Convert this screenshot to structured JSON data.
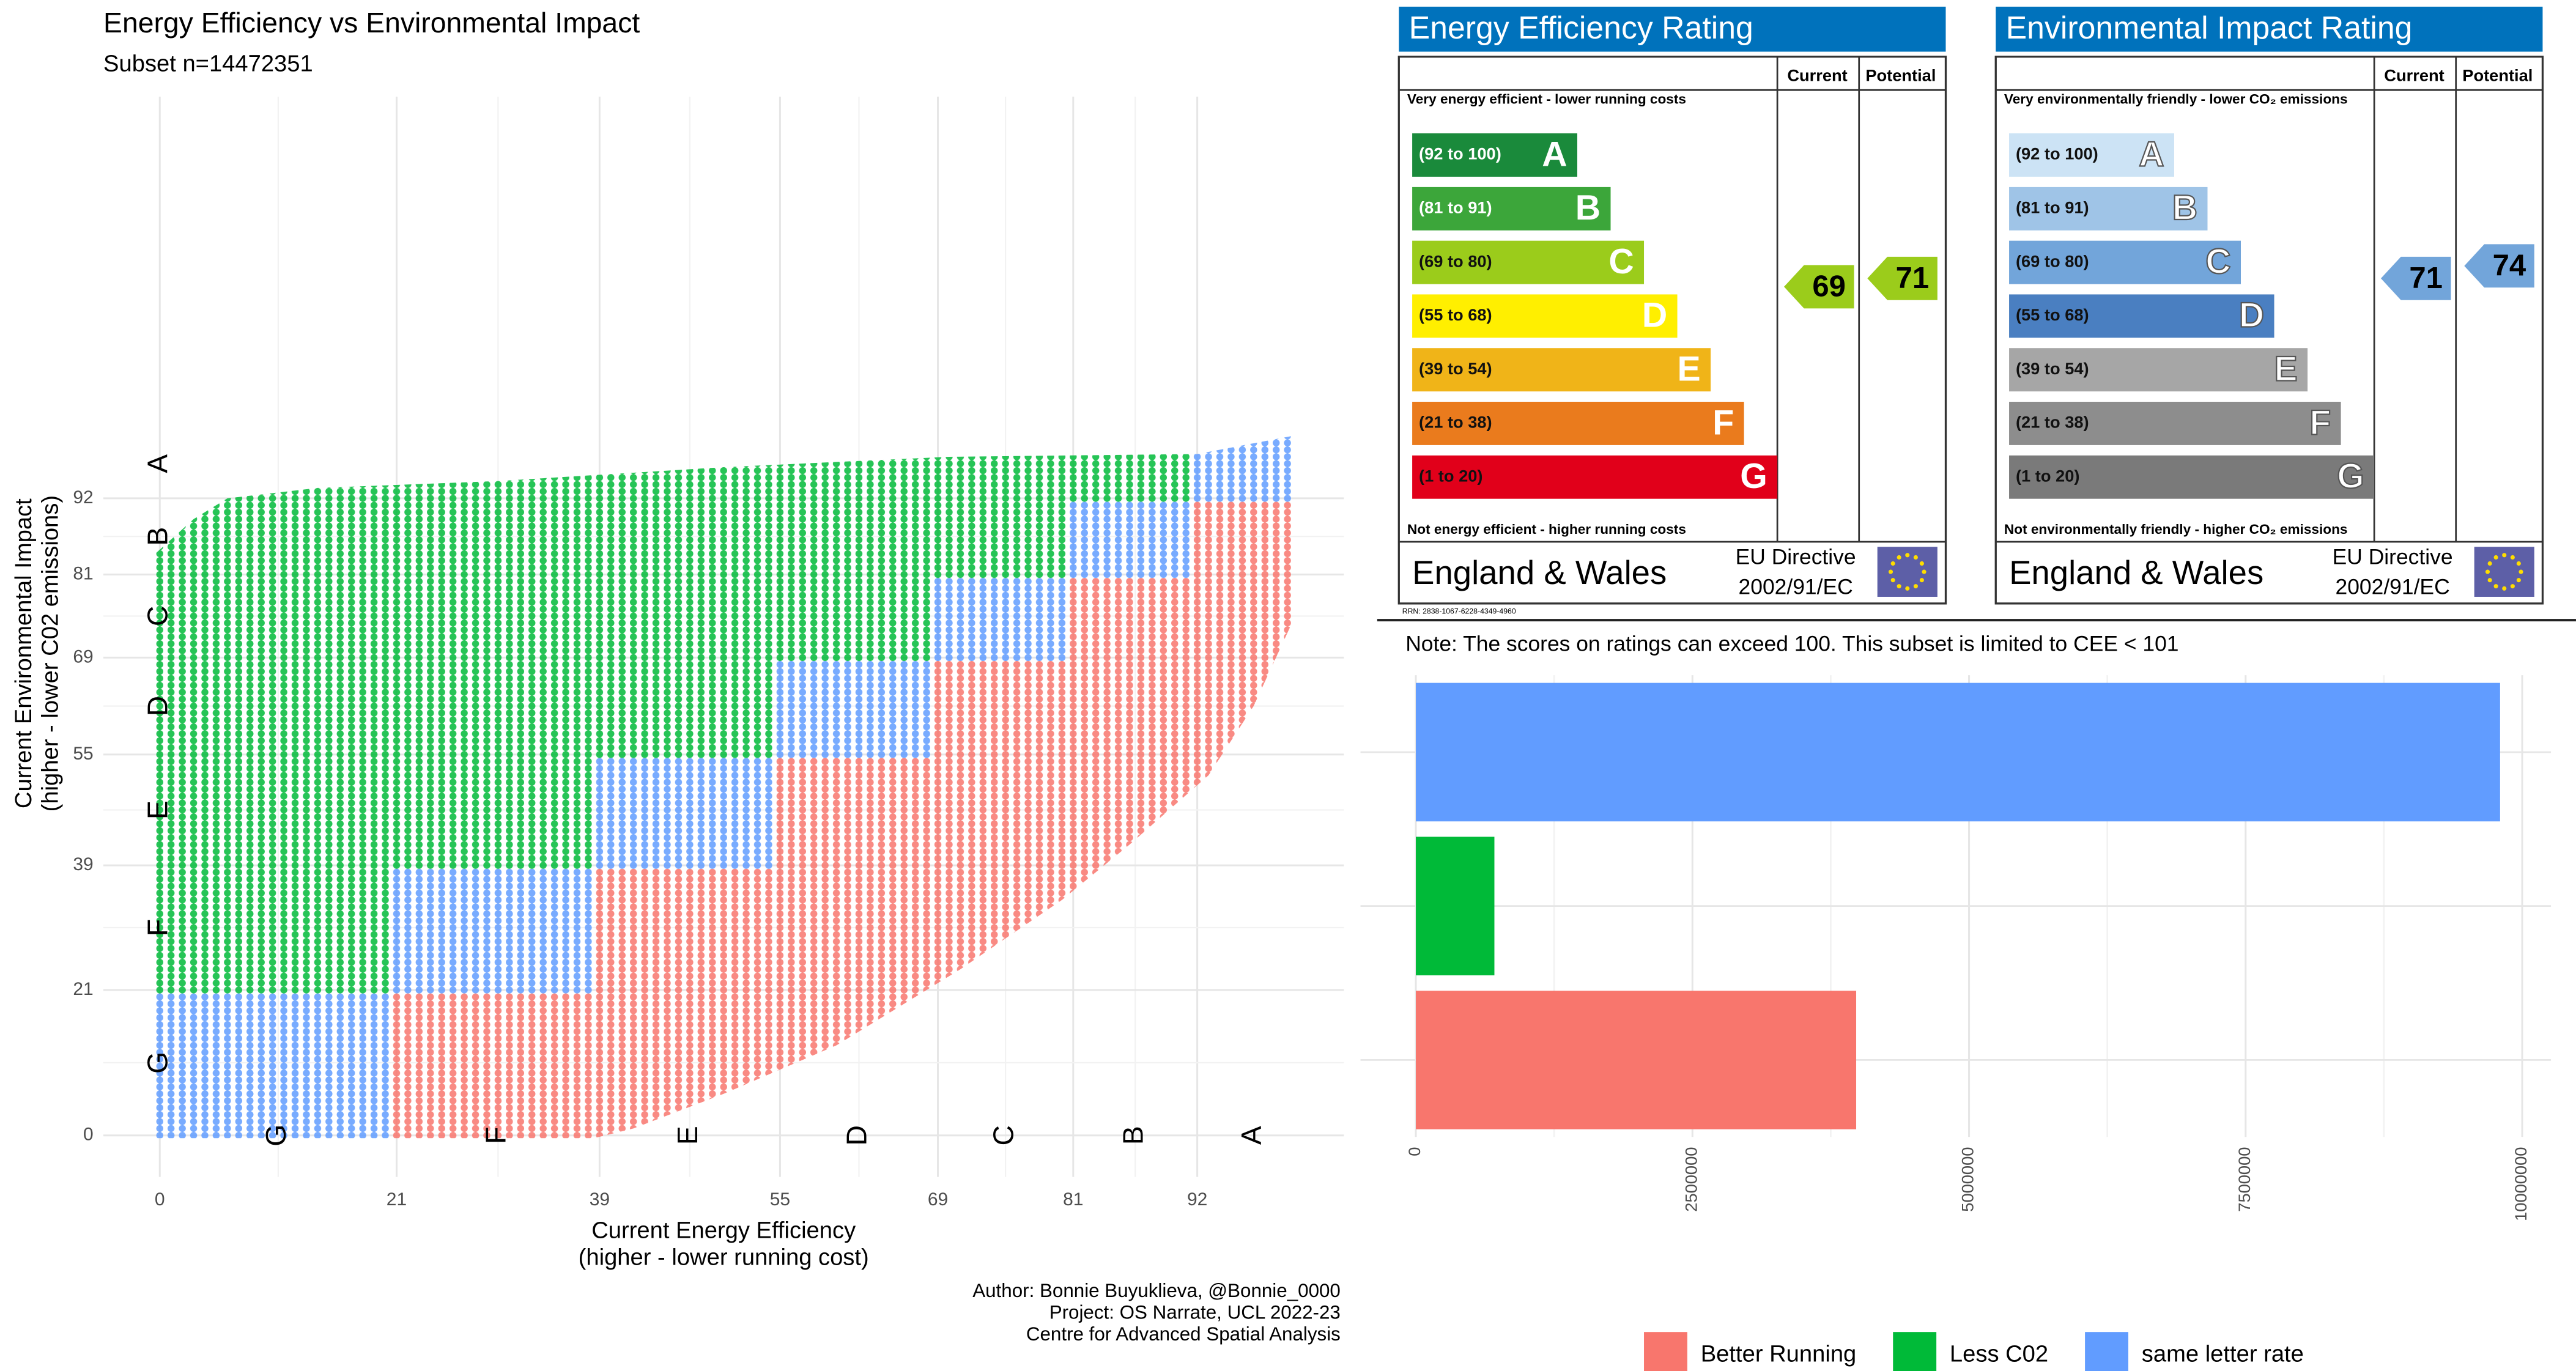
{
  "chart_data": [
    {
      "type": "scatter",
      "title": "Energy Efficiency vs Environmental Impact",
      "subtitle": "Subset n=14472351",
      "xlabel": [
        "Current Energy Efficiency",
        "(higher - lower running cost)"
      ],
      "ylabel": [
        "Current Environmental Impact",
        "(higher - lower C02 emissions)"
      ],
      "xlim": [
        -5,
        105
      ],
      "ylim": [
        -6,
        150
      ],
      "xticks": [
        0,
        21,
        39,
        55,
        69,
        81,
        92
      ],
      "yticks": [
        0,
        21,
        39,
        55,
        69,
        81,
        92
      ],
      "band_letters": [
        "G",
        "F",
        "E",
        "D",
        "C",
        "B",
        "A"
      ],
      "grid": true
    },
    {
      "type": "bar",
      "orientation": "horizontal",
      "note": "Note: The scores on ratings can exceed 100. This subset is limited to CEE < 101",
      "categories": [
        "Better Running",
        "Less C02",
        "same letter rate"
      ],
      "colors": [
        "#F8766D",
        "#00BA38",
        "#619CFF"
      ],
      "values": [
        3980000,
        710000,
        9800000
      ],
      "xlim": [
        -500000,
        10260000
      ],
      "xticks": [
        0,
        2500000,
        5000000,
        7500000,
        10000000
      ],
      "grid": true,
      "legend": "bottom"
    }
  ],
  "epc_panels": [
    {
      "title": "Energy Efficiency Rating",
      "header": [
        "Current",
        "Potential"
      ],
      "top_note": "Very energy efficient - lower running costs",
      "bands": [
        {
          "label": "(92 to 100)",
          "letter": "A",
          "color": "#1a8a3b"
        },
        {
          "label": "(81 to 91)",
          "letter": "B",
          "color": "#3ca63a"
        },
        {
          "label": "(69 to 80)",
          "letter": "C",
          "color": "#9bcc1b"
        },
        {
          "label": "(55 to 68)",
          "letter": "D",
          "color": "#ffef00"
        },
        {
          "label": "(39 to 54)",
          "letter": "E",
          "color": "#f0b418"
        },
        {
          "label": "(21 to 38)",
          "letter": "F",
          "color": "#ea7b1d"
        },
        {
          "label": "(1 to 20)",
          "letter": "G",
          "color": "#e1001a"
        }
      ],
      "bottom_note": "Not energy efficient - higher running costs",
      "country": "England & Wales",
      "directive": [
        "EU Directive",
        "2002/91/EC"
      ],
      "current": 69,
      "potential": 71,
      "rrn": "RRN: 2838-1067-6228-4349-4960"
    },
    {
      "title": "Environmental Impact Rating",
      "header": [
        "Current",
        "Potential"
      ],
      "top_note": "Very environmentally friendly - lower CO₂ emissions",
      "bands": [
        {
          "label": "(92 to 100)",
          "letter": "A",
          "color": "#cce3f5"
        },
        {
          "label": "(81 to 91)",
          "letter": "B",
          "color": "#9fc4e7"
        },
        {
          "label": "(69 to 80)",
          "letter": "C",
          "color": "#72a5da"
        },
        {
          "label": "(55 to 68)",
          "letter": "D",
          "color": "#4a7fc1"
        },
        {
          "label": "(39 to 54)",
          "letter": "E",
          "color": "#a6a6a6"
        },
        {
          "label": "(21 to 38)",
          "letter": "F",
          "color": "#8d8d8d"
        },
        {
          "label": "(1 to 20)",
          "letter": "G",
          "color": "#7a7a7a"
        }
      ],
      "bottom_note": "Not environmentally friendly - higher CO₂ emissions",
      "country": "England & Wales",
      "directive": [
        "EU Directive",
        "2002/91/EC"
      ],
      "current": 71,
      "potential": 74
    }
  ],
  "credits": [
    "Author: Bonnie Buyuklieva, @Bonnie_0000",
    "Project: OS Narrate, UCL 2022-23",
    "Centre for Advanced Spatial Analysis"
  ]
}
